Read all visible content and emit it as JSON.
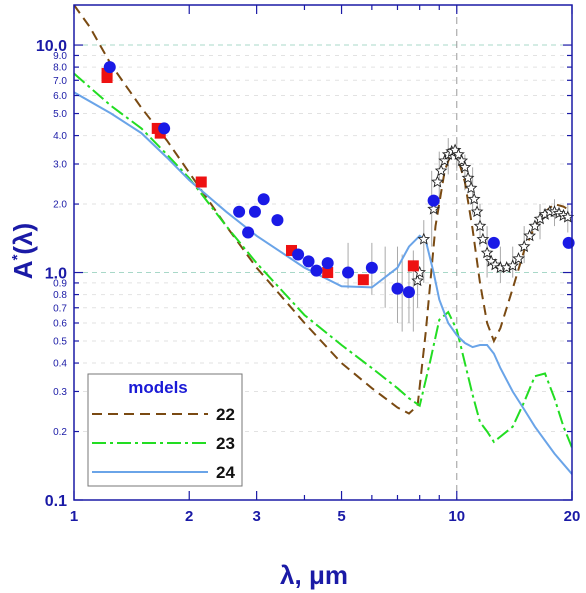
{
  "chart_data": {
    "type": "scatter",
    "xscale": "log",
    "yscale": "log",
    "xlim": [
      1,
      20
    ],
    "ylim": [
      0.1,
      15
    ],
    "xlabel": "λ, μm",
    "ylabel_main": "A",
    "ylabel_sup": "*",
    "ylabel_tail": "(λ)",
    "x_ticks": [
      1,
      2,
      3,
      5,
      10,
      20
    ],
    "x_tick_labels": [
      "1",
      "2",
      "3",
      "5",
      "10",
      "20"
    ],
    "y_major_ticks": [
      0.1,
      1.0,
      10.0
    ],
    "y_major_labels": [
      "0.1",
      "1.0",
      "10.0"
    ],
    "y_minor_ticks": [
      0.2,
      0.3,
      0.4,
      0.5,
      0.6,
      0.7,
      0.8,
      0.9,
      2.0,
      3.0,
      4.0,
      5.0,
      6.0,
      7.0,
      8.0,
      9.0
    ],
    "y_minor_labels": [
      "0.2",
      "0.3",
      "0.4",
      "0.5",
      "0.6",
      "0.7",
      "0.8",
      "0.9",
      "2.0",
      "3.0",
      "4.0",
      "5.0",
      "6.0",
      "7.0",
      "8.0",
      "9.0"
    ],
    "reference_lines": {
      "y": [
        1.0,
        10.0
      ],
      "x": [
        10
      ]
    },
    "legend": {
      "title": "models",
      "position": "bottom-left"
    },
    "colors": {
      "axis": "#1a1aa6",
      "grid": "#a8d8c8",
      "series_22": "#7a4a12",
      "series_23": "#22dd22",
      "series_24": "#6aa4e8",
      "blue_points": "#1a1ae6",
      "red_points": "#ee1111"
    },
    "series": [
      {
        "name": "22",
        "style": "dashed",
        "x": [
          1.0,
          1.1,
          1.25,
          1.5,
          1.75,
          2.0,
          2.5,
          3.0,
          4.0,
          5.0,
          6.0,
          7.0,
          7.5,
          7.9,
          8.3,
          8.8,
          9.3,
          9.7,
          10.0,
          10.5,
          11.0,
          11.5,
          12.0,
          12.5,
          13.0,
          14.0,
          15.0,
          16.0,
          17.0,
          18.0,
          19.0,
          20.0
        ],
        "y": [
          15.0,
          12.0,
          8.2,
          5.3,
          3.8,
          2.75,
          1.6,
          1.05,
          0.6,
          0.4,
          0.31,
          0.255,
          0.24,
          0.26,
          0.55,
          1.6,
          2.8,
          3.4,
          3.3,
          2.5,
          1.55,
          0.9,
          0.6,
          0.5,
          0.57,
          0.85,
          1.25,
          1.6,
          1.85,
          2.0,
          1.95,
          1.85
        ]
      },
      {
        "name": "23",
        "style": "dashdot",
        "x": [
          1.0,
          1.25,
          1.5,
          1.75,
          2.0,
          2.5,
          3.0,
          4.0,
          5.0,
          6.0,
          7.0,
          7.5,
          8.0,
          8.5,
          9.0,
          9.5,
          10.0,
          10.5,
          11.0,
          11.5,
          12.0,
          12.5,
          13.0,
          14.0,
          15.0,
          16.0,
          17.0,
          18.0,
          19.0,
          20.0
        ],
        "y": [
          7.5,
          5.4,
          4.3,
          3.3,
          2.6,
          1.6,
          1.1,
          0.65,
          0.48,
          0.38,
          0.31,
          0.28,
          0.26,
          0.4,
          0.62,
          0.67,
          0.56,
          0.4,
          0.29,
          0.22,
          0.2,
          0.18,
          0.19,
          0.21,
          0.27,
          0.35,
          0.36,
          0.28,
          0.21,
          0.17
        ]
      },
      {
        "name": "24",
        "style": "solid",
        "x": [
          1.0,
          1.25,
          1.5,
          1.75,
          2.0,
          2.5,
          3.0,
          4.0,
          5.0,
          6.0,
          7.0,
          7.5,
          8.0,
          8.3,
          8.7,
          9.0,
          9.5,
          10.0,
          10.5,
          11.0,
          11.5,
          12.0,
          12.5,
          13.0,
          14.0,
          15.0,
          16.0,
          18.0,
          20.0
        ],
        "y": [
          6.2,
          5.0,
          4.1,
          3.2,
          2.55,
          1.85,
          1.45,
          1.05,
          0.87,
          0.86,
          1.05,
          1.3,
          1.45,
          1.38,
          1.0,
          0.76,
          0.6,
          0.53,
          0.49,
          0.47,
          0.48,
          0.48,
          0.44,
          0.38,
          0.3,
          0.25,
          0.21,
          0.16,
          0.13
        ]
      }
    ],
    "points_blue": [
      [
        1.24,
        8.0
      ],
      [
        1.72,
        4.3
      ],
      [
        2.7,
        1.85
      ],
      [
        2.85,
        1.5
      ],
      [
        2.97,
        1.85
      ],
      [
        3.13,
        2.1
      ],
      [
        3.4,
        1.7
      ],
      [
        3.85,
        1.2
      ],
      [
        4.1,
        1.12
      ],
      [
        4.3,
        1.02
      ],
      [
        4.6,
        1.1
      ],
      [
        5.2,
        1.0
      ],
      [
        6.0,
        1.05
      ],
      [
        7.0,
        0.85
      ],
      [
        7.5,
        0.82
      ],
      [
        8.7,
        2.07
      ],
      [
        12.5,
        1.35
      ],
      [
        19.6,
        1.35
      ]
    ],
    "points_red": [
      [
        1.22,
        7.2
      ],
      [
        1.22,
        7.5
      ],
      [
        1.65,
        4.3
      ],
      [
        1.68,
        4.1
      ],
      [
        2.15,
        2.5
      ],
      [
        3.7,
        1.25
      ],
      [
        4.6,
        1.0
      ],
      [
        5.7,
        0.93
      ],
      [
        7.7,
        1.07
      ]
    ],
    "points_star": [
      [
        8.2,
        1.4
      ],
      [
        8.7,
        1.9
      ],
      [
        8.9,
        2.5
      ],
      [
        9.1,
        2.8
      ],
      [
        9.3,
        3.1
      ],
      [
        9.5,
        3.3
      ],
      [
        9.7,
        3.4
      ],
      [
        9.9,
        3.45
      ],
      [
        10.1,
        3.3
      ],
      [
        10.3,
        3.1
      ],
      [
        10.5,
        2.9
      ],
      [
        10.7,
        2.6
      ],
      [
        10.9,
        2.35
      ],
      [
        11.1,
        2.1
      ],
      [
        11.3,
        1.85
      ],
      [
        11.5,
        1.6
      ],
      [
        11.7,
        1.4
      ],
      [
        12.0,
        1.22
      ],
      [
        12.3,
        1.12
      ],
      [
        12.6,
        1.08
      ],
      [
        13.0,
        1.05
      ],
      [
        13.5,
        1.05
      ],
      [
        14.0,
        1.07
      ],
      [
        14.5,
        1.15
      ],
      [
        15.0,
        1.3
      ],
      [
        15.5,
        1.45
      ],
      [
        16.0,
        1.6
      ],
      [
        16.5,
        1.72
      ],
      [
        17.0,
        1.8
      ],
      [
        17.5,
        1.85
      ],
      [
        18.0,
        1.85
      ],
      [
        18.5,
        1.82
      ],
      [
        19.0,
        1.78
      ],
      [
        19.5,
        1.75
      ],
      [
        7.9,
        0.92
      ],
      [
        8.0,
        1.0
      ]
    ],
    "error_bars": [
      {
        "x": 5.2,
        "lo": 0.85,
        "hi": 1.35
      },
      {
        "x": 6.0,
        "lo": 0.8,
        "hi": 1.35
      },
      {
        "x": 6.5,
        "lo": 0.7,
        "hi": 1.3
      },
      {
        "x": 7.0,
        "lo": 0.6,
        "hi": 1.3
      },
      {
        "x": 7.2,
        "lo": 0.55,
        "hi": 1.2
      },
      {
        "x": 7.5,
        "lo": 0.6,
        "hi": 1.1
      },
      {
        "x": 7.7,
        "lo": 0.55,
        "hi": 1.25
      },
      {
        "x": 7.9,
        "lo": 0.7,
        "hi": 1.1
      },
      {
        "x": 8.2,
        "lo": 0.9,
        "hi": 1.7
      },
      {
        "x": 8.6,
        "lo": 1.3,
        "hi": 2.8
      },
      {
        "x": 9.0,
        "lo": 2.0,
        "hi": 3.4
      },
      {
        "x": 9.5,
        "lo": 2.7,
        "hi": 3.9
      },
      {
        "x": 10.0,
        "lo": 2.8,
        "hi": 3.9
      },
      {
        "x": 10.5,
        "lo": 2.3,
        "hi": 3.3
      },
      {
        "x": 11.0,
        "lo": 1.8,
        "hi": 2.9
      },
      {
        "x": 11.5,
        "lo": 1.3,
        "hi": 2.0
      },
      {
        "x": 12.0,
        "lo": 0.95,
        "hi": 1.6
      },
      {
        "x": 13.0,
        "lo": 0.9,
        "hi": 1.3
      },
      {
        "x": 14.0,
        "lo": 0.95,
        "hi": 1.3
      },
      {
        "x": 15.0,
        "lo": 1.1,
        "hi": 1.6
      },
      {
        "x": 16.5,
        "lo": 1.4,
        "hi": 2.0
      },
      {
        "x": 18.0,
        "lo": 1.6,
        "hi": 2.1
      },
      {
        "x": 19.5,
        "lo": 1.5,
        "hi": 2.0
      }
    ]
  }
}
